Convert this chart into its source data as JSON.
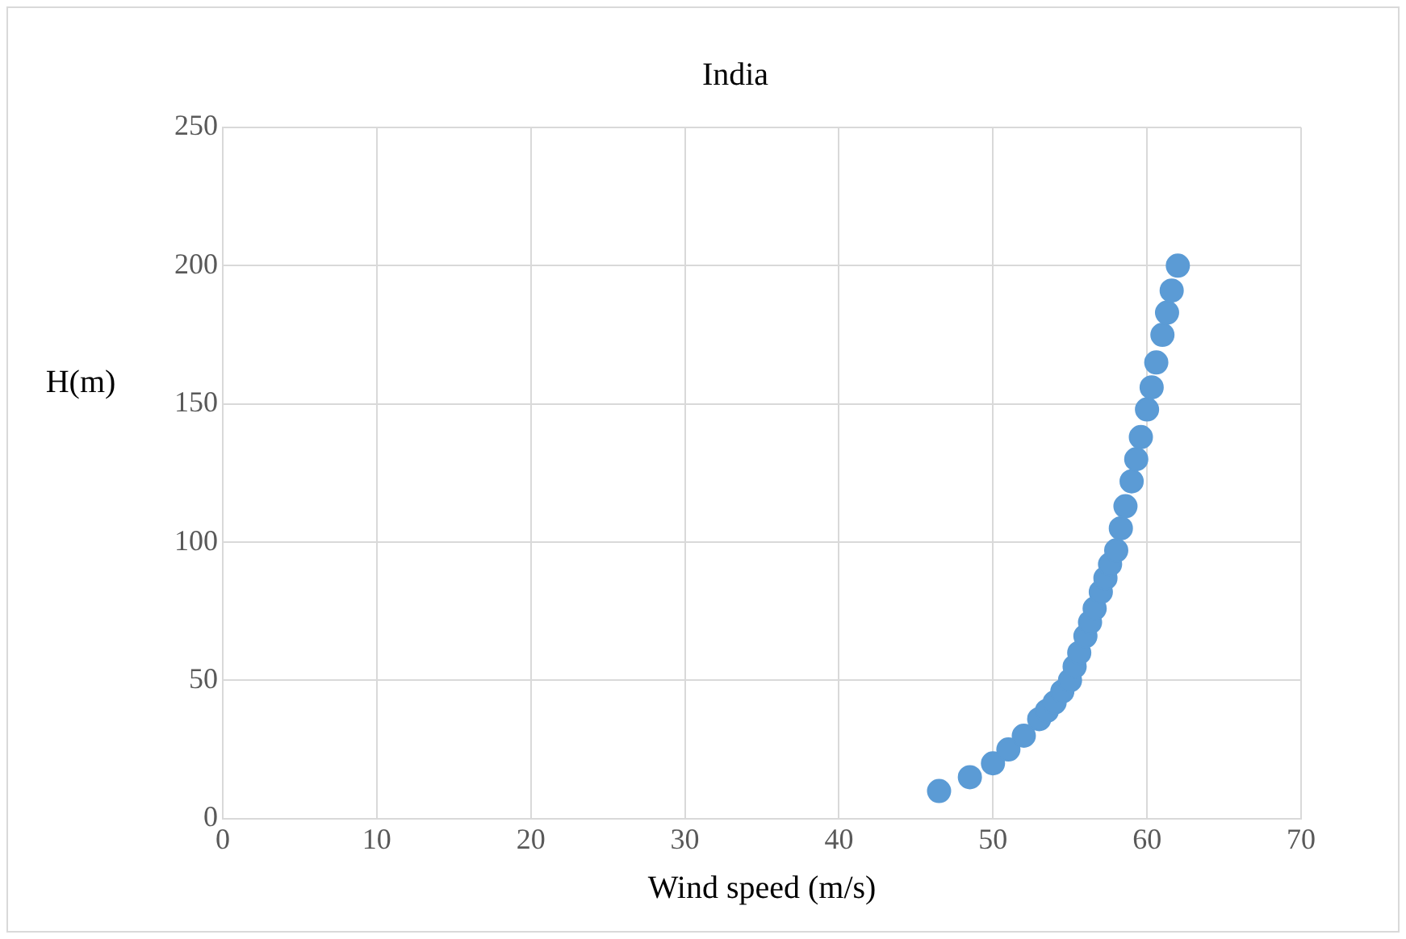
{
  "chart_data": {
    "type": "scatter",
    "title": "India",
    "xlabel": "Wind speed (m/s)",
    "ylabel": "H(m)",
    "x": [
      46.5,
      48.5,
      50,
      51,
      52,
      53,
      53.5,
      54,
      54.5,
      55,
      55.3,
      55.6,
      56,
      56.3,
      56.6,
      57,
      57.3,
      57.6,
      58,
      58.3,
      58.6,
      59,
      59.3,
      59.6,
      60,
      60.3,
      60.6,
      61,
      61.3,
      61.6,
      62
    ],
    "series": [
      {
        "color": "#5b9bd5",
        "values": [
          10,
          15,
          20,
          25,
          30,
          36,
          39,
          42,
          46,
          50,
          55,
          60,
          66,
          71,
          76,
          82,
          87,
          92,
          97,
          105,
          113,
          122,
          130,
          138,
          148,
          156,
          165,
          175,
          183,
          191,
          200
        ]
      }
    ],
    "xlim": [
      0,
      70
    ],
    "xticks": [
      0,
      10,
      20,
      30,
      40,
      50,
      60,
      70
    ],
    "ylim": [
      0,
      250
    ],
    "yticks": [
      0,
      50,
      100,
      150,
      200,
      250
    ],
    "grid": true,
    "marker": "circle",
    "legend": false
  }
}
